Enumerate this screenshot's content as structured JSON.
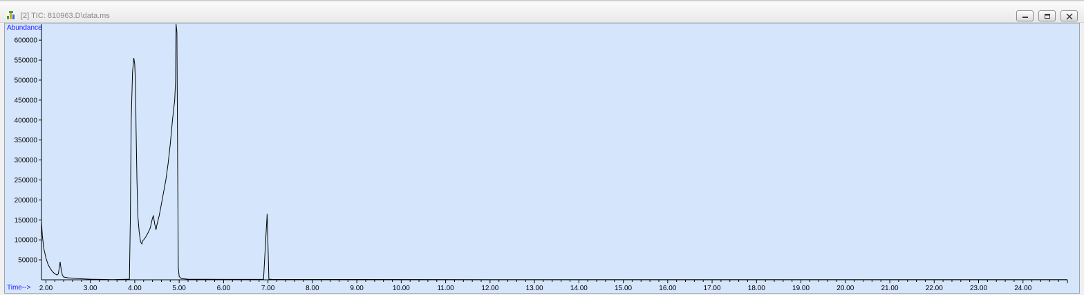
{
  "window": {
    "title": "[2] TIC: 810963.D\\data.ms",
    "icon": "chromatogram-icon",
    "controls": [
      "minimize-icon",
      "restore-icon",
      "close-icon"
    ]
  },
  "colors": {
    "plot_background": "#d5e6fc",
    "trace": "#000000",
    "axis_title": "#1a1aff"
  },
  "chart_data": {
    "type": "line",
    "ylabel": "Abundance",
    "xlabel": "Time-->",
    "xlim": [
      1.9,
      25.0
    ],
    "ylim": [
      0,
      640000
    ],
    "x_ticks": [
      "2.00",
      "3.00",
      "4.00",
      "5.00",
      "6.00",
      "7.00",
      "8.00",
      "9.00",
      "10.00",
      "11.00",
      "12.00",
      "13.00",
      "14.00",
      "15.00",
      "16.00",
      "17.00",
      "18.00",
      "19.00",
      "20.00",
      "21.00",
      "22.00",
      "23.00",
      "24.00"
    ],
    "y_ticks": [
      "50000",
      "100000",
      "150000",
      "200000",
      "250000",
      "300000",
      "350000",
      "400000",
      "450000",
      "500000",
      "550000",
      "600000"
    ],
    "grid": false,
    "series": [
      {
        "x": [
          1.9,
          1.92,
          1.95,
          2.0,
          2.05,
          2.1,
          2.15,
          2.2,
          2.25,
          2.28,
          2.3,
          2.32,
          2.34,
          2.37,
          2.4,
          2.5,
          2.7,
          3.0,
          3.5,
          3.88,
          3.9,
          3.92,
          3.95,
          3.98,
          4.0,
          4.02,
          4.03,
          4.05,
          4.07,
          4.1,
          4.13,
          4.16,
          4.18,
          4.2,
          4.25,
          4.3,
          4.35,
          4.4,
          4.42,
          4.45,
          4.48,
          4.5,
          4.55,
          4.6,
          4.65,
          4.7,
          4.75,
          4.8,
          4.85,
          4.88,
          4.9,
          4.92,
          4.93,
          4.95,
          4.96,
          4.98,
          5.0,
          5.05,
          5.2,
          6.0,
          6.9,
          6.98,
          7.0,
          7.02,
          7.1,
          8.0,
          12.0,
          16.0,
          20.0,
          24.0,
          25.0
        ],
        "y": [
          145000,
          110000,
          80000,
          55000,
          38000,
          28000,
          20000,
          15000,
          12000,
          15000,
          30000,
          45000,
          28000,
          12000,
          7000,
          5000,
          3000,
          1500,
          500,
          1500,
          150000,
          400000,
          520000,
          555000,
          540000,
          480000,
          380000,
          250000,
          160000,
          120000,
          95000,
          90000,
          98000,
          100000,
          108000,
          118000,
          130000,
          155000,
          160000,
          140000,
          125000,
          138000,
          160000,
          190000,
          220000,
          250000,
          290000,
          340000,
          400000,
          430000,
          450000,
          500000,
          660000,
          620000,
          400000,
          30000,
          8000,
          3000,
          1500,
          1000,
          1000,
          165000,
          90000,
          1500,
          1000,
          800,
          500,
          500,
          500,
          500,
          500
        ]
      }
    ]
  }
}
